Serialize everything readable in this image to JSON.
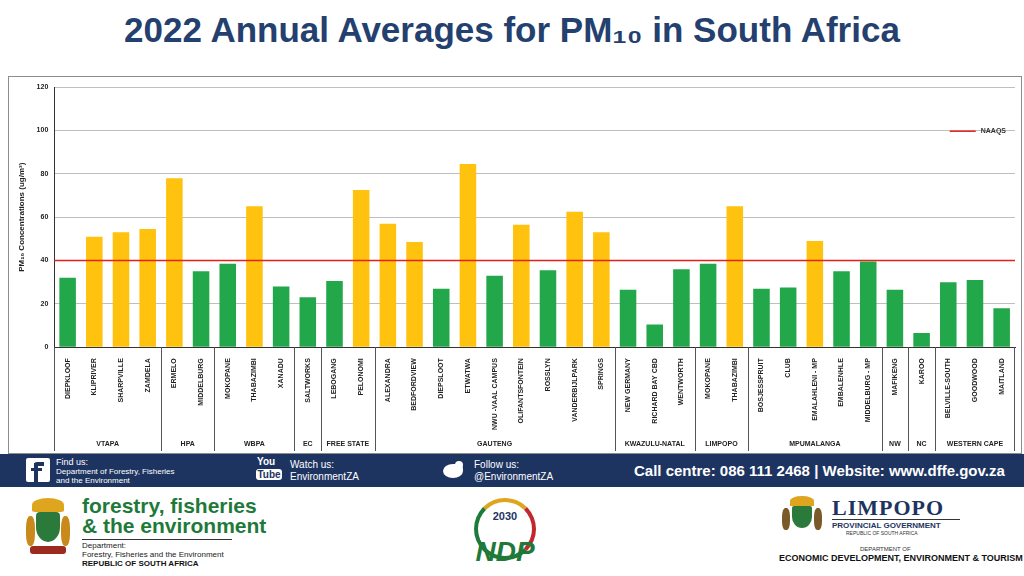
{
  "chart_data": {
    "type": "bar",
    "title": "2022 Annual Averages for PM₁₀ in South Africa",
    "y_label": "PM₁₀ Concentrations (ug/m³)",
    "categories": [
      "DIEPKLOOF",
      "KLIPRIVER",
      "SHARPVILLE",
      "ZAMDELA",
      "ERMELO",
      "MIDDELBURG",
      "MOKOPANE",
      "THABAZIMBI",
      "XANADU",
      "SALTWORKS",
      "LEBOGANG",
      "PELONOMI",
      "ALEXANDRA",
      "BEDFORDVIEW",
      "DIEPSLOOT",
      "ETWATWA",
      "NWU -VAAL CAMPUS",
      "OLIFANTSFONTEIN",
      "ROSSLYN",
      "VANDERBIJLPARK",
      "SPRINGS",
      "NEW GERMANY",
      "RICHARD BAY CBD",
      "WENTWORTH",
      "MOKOPANE",
      "THABAZIMBI",
      "BOSJESSPRUIT",
      "CLUB",
      "EMALAHLENI - MP",
      "EMBALENHLE",
      "MIDDELBURG - MP",
      "MAFIKENG",
      "KAROO",
      "BELVILLE-SOUTH",
      "GOODWOOD",
      "MAITLAND"
    ],
    "values": [
      32,
      51,
      53,
      54.5,
      78,
      35,
      38.5,
      65,
      28,
      23,
      30.5,
      72.5,
      57,
      48.5,
      27,
      84.5,
      33,
      56.5,
      35.5,
      62.5,
      53,
      26.5,
      10.5,
      36,
      38.5,
      65,
      27,
      27.5,
      49,
      35,
      39.5,
      26.5,
      6.5,
      30,
      31,
      18
    ],
    "colors": [
      "#22a84a",
      "#ffc20e",
      "#ffc20e",
      "#ffc20e",
      "#ffc20e",
      "#22a84a",
      "#22a84a",
      "#ffc20e",
      "#22a84a",
      "#22a84a",
      "#22a84a",
      "#ffc20e",
      "#ffc20e",
      "#ffc20e",
      "#22a84a",
      "#ffc20e",
      "#22a84a",
      "#ffc20e",
      "#22a84a",
      "#ffc20e",
      "#ffc20e",
      "#22a84a",
      "#22a84a",
      "#22a84a",
      "#22a84a",
      "#ffc20e",
      "#22a84a",
      "#22a84a",
      "#ffc20e",
      "#22a84a",
      "#22a84a",
      "#22a84a",
      "#22a84a",
      "#22a84a",
      "#22a84a",
      "#22a84a"
    ],
    "groups": [
      {
        "name": "VTAPA",
        "size": 4
      },
      {
        "name": "HPA",
        "size": 2
      },
      {
        "name": "WBPA",
        "size": 3
      },
      {
        "name": "EC",
        "size": 1
      },
      {
        "name": "FREE STATE",
        "size": 2
      },
      {
        "name": "GAUTENG",
        "size": 9
      },
      {
        "name": "KWAZULU-NATAL",
        "size": 3
      },
      {
        "name": "LIMPOPO",
        "size": 2
      },
      {
        "name": "MPUMALANGA",
        "size": 5
      },
      {
        "name": "NW",
        "size": 1
      },
      {
        "name": "NC",
        "size": 1
      },
      {
        "name": "WESTERN CAPE",
        "size": 3
      }
    ],
    "reference_line": {
      "name": "NAAQS",
      "value": 40,
      "color": "#e3201b"
    },
    "ylim": [
      0,
      120
    ],
    "yticks": [
      0,
      20,
      40,
      60,
      80,
      100,
      120
    ],
    "grid": true,
    "legend": "top-right"
  },
  "footer": {
    "find_label": "Find us:",
    "find_text": "Department of Forestry, Fisheries and the Environment",
    "youtube_icon": [
      "You",
      "Tube"
    ],
    "watch_label": "Watch us:",
    "watch_text": "EnvironmentZA",
    "follow_label": "Follow us:",
    "follow_text": "@EnvironmentZA",
    "contact": "Call centre: 086 111 2468 | Website: www.dffe.gov.za",
    "dffe_logo": [
      "forestry, fisheries",
      "& the environment",
      "Department:",
      "Forestry, Fisheries and the Environment",
      "REPUBLIC OF SOUTH AFRICA"
    ],
    "ndp_logo": [
      "2030",
      "NDP"
    ],
    "limpopo_logo": [
      "LIMPOPO",
      "PROVINCIAL GOVERNMENT",
      "REPUBLIC OF SOUTH AFRICA",
      "DEPARTMENT OF",
      "ECONOMIC DEVELOPMENT, ENVIRONMENT & TOURISM"
    ]
  }
}
